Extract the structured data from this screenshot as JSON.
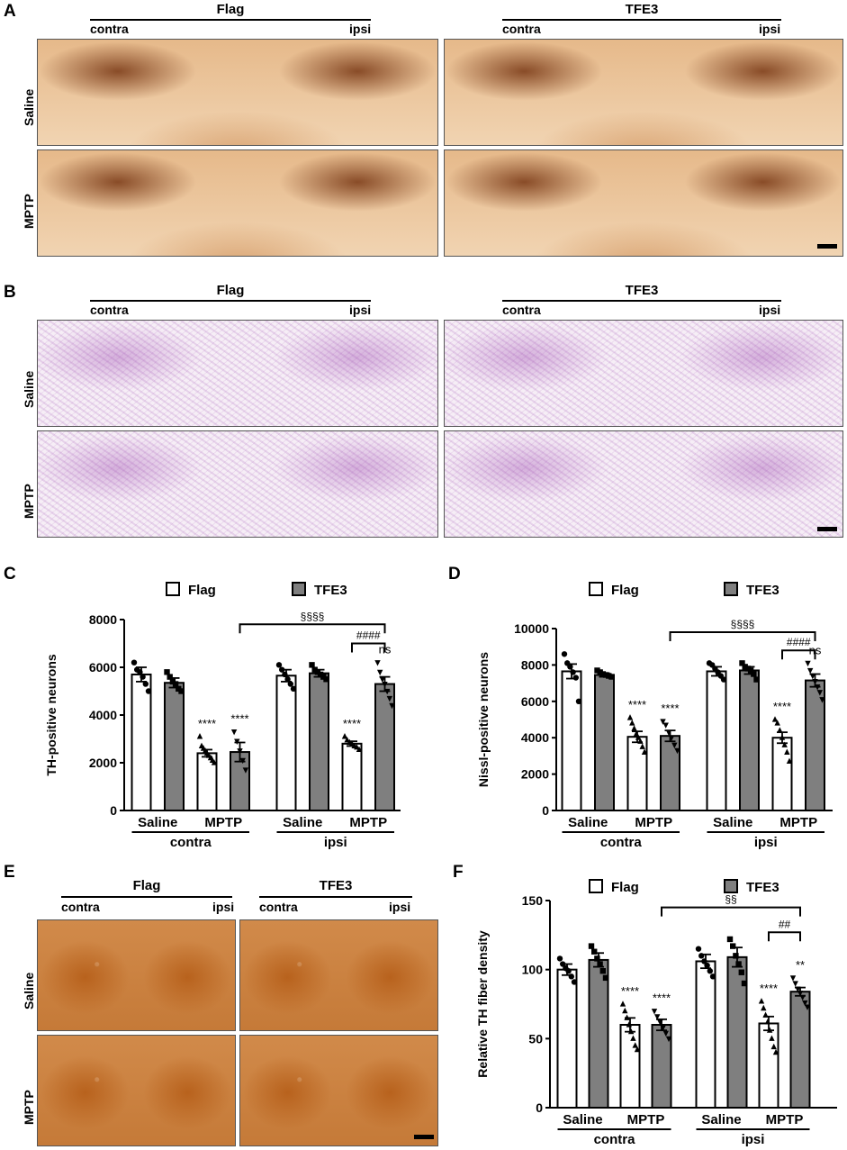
{
  "panel_letters": {
    "a": "A",
    "b": "B",
    "c": "C",
    "d": "D",
    "e": "E",
    "f": "F"
  },
  "panel_a": {
    "group_left": "Flag",
    "group_right": "TFE3",
    "side_contra": "contra",
    "side_ipsi": "ipsi",
    "row1": "Saline",
    "row2": "MPTP"
  },
  "panel_b": {
    "group_left": "Flag",
    "group_right": "TFE3",
    "side_contra": "contra",
    "side_ipsi": "ipsi",
    "row1": "Saline",
    "row2": "MPTP"
  },
  "panel_e": {
    "group_left": "Flag",
    "group_right": "TFE3",
    "side_contra": "contra",
    "side_ipsi": "ipsi",
    "row1": "Saline",
    "row2": "MPTP"
  },
  "colors": {
    "flag_bar": "#ffffff",
    "tfe3_bar": "#7f7f7f",
    "axis": "#000000"
  },
  "chart_data": [
    {
      "id": "C",
      "type": "bar",
      "ylabel": "TH-positive neurons",
      "ylim": [
        0,
        8000
      ],
      "yticks": [
        0,
        2000,
        4000,
        6000,
        8000
      ],
      "legend": [
        "Flag",
        "TFE3"
      ],
      "treatment_labels": [
        "Saline",
        "MPTP",
        "Saline",
        "MPTP"
      ],
      "side_labels": [
        "contra",
        "ipsi"
      ],
      "bars": [
        {
          "group": "Flag",
          "side": "contra",
          "treatment": "Saline",
          "value": 5700,
          "err": 300,
          "points": [
            6200,
            5900,
            5800,
            5600,
            5300,
            5000
          ],
          "marker": "circle",
          "sig": ""
        },
        {
          "group": "TFE3",
          "side": "contra",
          "treatment": "Saline",
          "value": 5350,
          "err": 200,
          "points": [
            5800,
            5600,
            5400,
            5300,
            5100,
            5000
          ],
          "marker": "square",
          "sig": ""
        },
        {
          "group": "Flag",
          "side": "contra",
          "treatment": "MPTP",
          "value": 2400,
          "err": 150,
          "points": [
            3100,
            2700,
            2600,
            2500,
            2400,
            2300,
            2200,
            2100,
            2000
          ],
          "marker": "triangle",
          "sig": "****"
        },
        {
          "group": "TFE3",
          "side": "contra",
          "treatment": "MPTP",
          "value": 2450,
          "err": 400,
          "points": [
            3300,
            2900,
            2500,
            2100,
            1700
          ],
          "marker": "triangle-down",
          "sig": "****"
        },
        {
          "group": "Flag",
          "side": "ipsi",
          "treatment": "Saline",
          "value": 5650,
          "err": 250,
          "points": [
            6100,
            5900,
            5700,
            5500,
            5300,
            5100
          ],
          "marker": "circle",
          "sig": ""
        },
        {
          "group": "TFE3",
          "side": "ipsi",
          "treatment": "Saline",
          "value": 5750,
          "err": 150,
          "points": [
            6100,
            5900,
            5800,
            5700,
            5600,
            5500
          ],
          "marker": "square",
          "sig": ""
        },
        {
          "group": "Flag",
          "side": "ipsi",
          "treatment": "MPTP",
          "value": 2800,
          "err": 100,
          "points": [
            3100,
            2950,
            2850,
            2800,
            2700,
            2650,
            2550
          ],
          "marker": "triangle",
          "sig": "****"
        },
        {
          "group": "TFE3",
          "side": "ipsi",
          "treatment": "MPTP",
          "value": 5300,
          "err": 300,
          "points": [
            6200,
            5800,
            5500,
            5300,
            5000,
            4700,
            4400
          ],
          "marker": "triangle-down",
          "sig": "ns"
        }
      ],
      "brackets": [
        {
          "label": "§§§§",
          "from": 3,
          "to": 7,
          "level": 7800
        },
        {
          "label": "####",
          "from": 6,
          "to": 7,
          "level": 7000
        }
      ]
    },
    {
      "id": "D",
      "type": "bar",
      "ylabel": "Nissl-positive neurons",
      "ylim": [
        0,
        10000
      ],
      "yticks": [
        0,
        2000,
        4000,
        6000,
        8000,
        10000
      ],
      "legend": [
        "Flag",
        "TFE3"
      ],
      "treatment_labels": [
        "Saline",
        "MPTP",
        "Saline",
        "MPTP"
      ],
      "side_labels": [
        "contra",
        "ipsi"
      ],
      "bars": [
        {
          "group": "Flag",
          "side": "contra",
          "treatment": "Saline",
          "value": 7650,
          "err": 400,
          "points": [
            8600,
            8100,
            7900,
            7600,
            7300,
            6000
          ],
          "marker": "circle",
          "sig": ""
        },
        {
          "group": "TFE3",
          "side": "contra",
          "treatment": "Saline",
          "value": 7450,
          "err": 100,
          "points": [
            7700,
            7600,
            7500,
            7450,
            7400,
            7350
          ],
          "marker": "square",
          "sig": ""
        },
        {
          "group": "Flag",
          "side": "contra",
          "treatment": "MPTP",
          "value": 4050,
          "err": 300,
          "points": [
            5100,
            4800,
            4500,
            4200,
            4000,
            3800,
            3500,
            3200
          ],
          "marker": "triangle",
          "sig": "****"
        },
        {
          "group": "TFE3",
          "side": "contra",
          "treatment": "MPTP",
          "value": 4100,
          "err": 300,
          "points": [
            4900,
            4700,
            4300,
            4000,
            3600,
            3300
          ],
          "marker": "triangle-down",
          "sig": "****"
        },
        {
          "group": "Flag",
          "side": "ipsi",
          "treatment": "Saline",
          "value": 7650,
          "err": 250,
          "points": [
            8100,
            8000,
            7800,
            7600,
            7400,
            7200
          ],
          "marker": "circle",
          "sig": ""
        },
        {
          "group": "TFE3",
          "side": "ipsi",
          "treatment": "Saline",
          "value": 7700,
          "err": 200,
          "points": [
            8100,
            7900,
            7800,
            7700,
            7500,
            7200
          ],
          "marker": "square",
          "sig": ""
        },
        {
          "group": "Flag",
          "side": "ipsi",
          "treatment": "MPTP",
          "value": 4000,
          "err": 300,
          "points": [
            5000,
            4800,
            4400,
            4000,
            3600,
            3200,
            2700
          ],
          "marker": "triangle",
          "sig": "****"
        },
        {
          "group": "TFE3",
          "side": "ipsi",
          "treatment": "MPTP",
          "value": 7150,
          "err": 350,
          "points": [
            8100,
            7700,
            7400,
            7100,
            6800,
            6500,
            6100
          ],
          "marker": "triangle-down",
          "sig": "ns"
        }
      ],
      "brackets": [
        {
          "label": "§§§§",
          "from": 3,
          "to": 7,
          "level": 9800
        },
        {
          "label": "####",
          "from": 6,
          "to": 7,
          "level": 8800
        }
      ]
    },
    {
      "id": "F",
      "type": "bar",
      "ylabel": "Relative TH fiber density",
      "ylim": [
        0,
        150
      ],
      "yticks": [
        0,
        50,
        100,
        150
      ],
      "legend": [
        "Flag",
        "TFE3"
      ],
      "treatment_labels": [
        "Saline",
        "MPTP",
        "Saline",
        "MPTP"
      ],
      "side_labels": [
        "contra",
        "ipsi"
      ],
      "bars": [
        {
          "group": "Flag",
          "side": "contra",
          "treatment": "Saline",
          "value": 100,
          "err": 4,
          "points": [
            108,
            104,
            101,
            99,
            95,
            91
          ],
          "marker": "circle",
          "sig": ""
        },
        {
          "group": "TFE3",
          "side": "contra",
          "treatment": "Saline",
          "value": 107,
          "err": 5,
          "points": [
            117,
            113,
            108,
            104,
            99,
            94
          ],
          "marker": "square",
          "sig": ""
        },
        {
          "group": "Flag",
          "side": "contra",
          "treatment": "MPTP",
          "value": 60,
          "err": 5,
          "points": [
            75,
            70,
            65,
            60,
            55,
            50,
            45,
            42
          ],
          "marker": "triangle",
          "sig": "****"
        },
        {
          "group": "TFE3",
          "side": "contra",
          "treatment": "MPTP",
          "value": 60,
          "err": 4,
          "points": [
            70,
            66,
            62,
            58,
            54,
            50
          ],
          "marker": "triangle-down",
          "sig": "****"
        },
        {
          "group": "Flag",
          "side": "ipsi",
          "treatment": "Saline",
          "value": 106,
          "err": 5,
          "points": [
            115,
            110,
            106,
            103,
            99,
            95
          ],
          "marker": "circle",
          "sig": ""
        },
        {
          "group": "TFE3",
          "side": "ipsi",
          "treatment": "Saline",
          "value": 109,
          "err": 7,
          "points": [
            122,
            117,
            110,
            104,
            98,
            90
          ],
          "marker": "square",
          "sig": ""
        },
        {
          "group": "Flag",
          "side": "ipsi",
          "treatment": "MPTP",
          "value": 61,
          "err": 5,
          "points": [
            77,
            72,
            67,
            62,
            56,
            50,
            44,
            40
          ],
          "marker": "triangle",
          "sig": "****"
        },
        {
          "group": "TFE3",
          "side": "ipsi",
          "treatment": "MPTP",
          "value": 84,
          "err": 3,
          "points": [
            94,
            90,
            86,
            83,
            80,
            76,
            73
          ],
          "marker": "triangle-down",
          "sig": "**"
        }
      ],
      "brackets": [
        {
          "label": "§§",
          "from": 3,
          "to": 7,
          "level": 145
        },
        {
          "label": "##",
          "from": 6,
          "to": 7,
          "level": 127
        }
      ]
    }
  ]
}
